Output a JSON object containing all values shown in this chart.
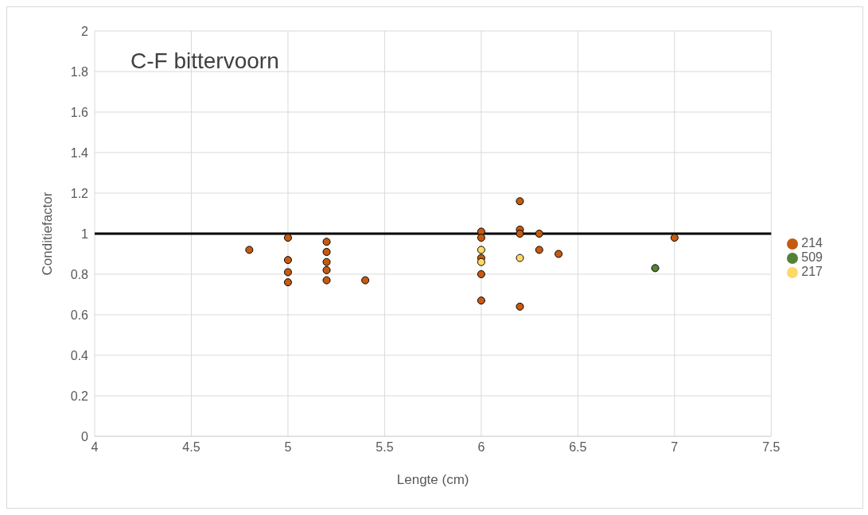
{
  "chart_data": {
    "type": "scatter",
    "title": "C-F bittervoorn",
    "xlabel": "Lengte (cm)",
    "ylabel": "Conditiefactor",
    "xlim": [
      4,
      7.5
    ],
    "xticks": [
      4,
      4.5,
      5,
      5.5,
      6,
      6.5,
      7,
      7.5
    ],
    "ylim": [
      0,
      2
    ],
    "yticks": [
      0,
      0.2,
      0.4,
      0.6,
      0.8,
      1,
      1.2,
      1.4,
      1.6,
      1.8,
      2
    ],
    "grid": true,
    "legend": "right",
    "marker": "circle",
    "ref_lines": [
      {
        "axis": "y",
        "value": 1,
        "color": "#000000"
      }
    ],
    "series": [
      {
        "name": "214",
        "color": "#c55a11",
        "x": [
          4.8,
          5,
          5,
          5,
          5,
          5.2,
          5.2,
          5.2,
          5.2,
          5.2,
          5.4,
          6,
          6,
          6,
          6,
          6,
          6.2,
          6.2,
          6.2,
          6.2,
          6.3,
          6.3,
          6.4,
          7
        ],
        "values": [
          0.92,
          0.98,
          0.87,
          0.81,
          0.76,
          0.96,
          0.91,
          0.86,
          0.82,
          0.77,
          0.77,
          1.01,
          0.98,
          0.88,
          0.8,
          0.67,
          1.16,
          1.02,
          1,
          0.64,
          1,
          0.92,
          0.9,
          0.98
        ]
      },
      {
        "name": "509",
        "color": "#548235",
        "x": [
          6.9
        ],
        "values": [
          0.83
        ]
      },
      {
        "name": "217",
        "color": "#ffd966",
        "x": [
          6,
          6,
          6.2
        ],
        "values": [
          0.92,
          0.86,
          0.88
        ]
      }
    ]
  }
}
